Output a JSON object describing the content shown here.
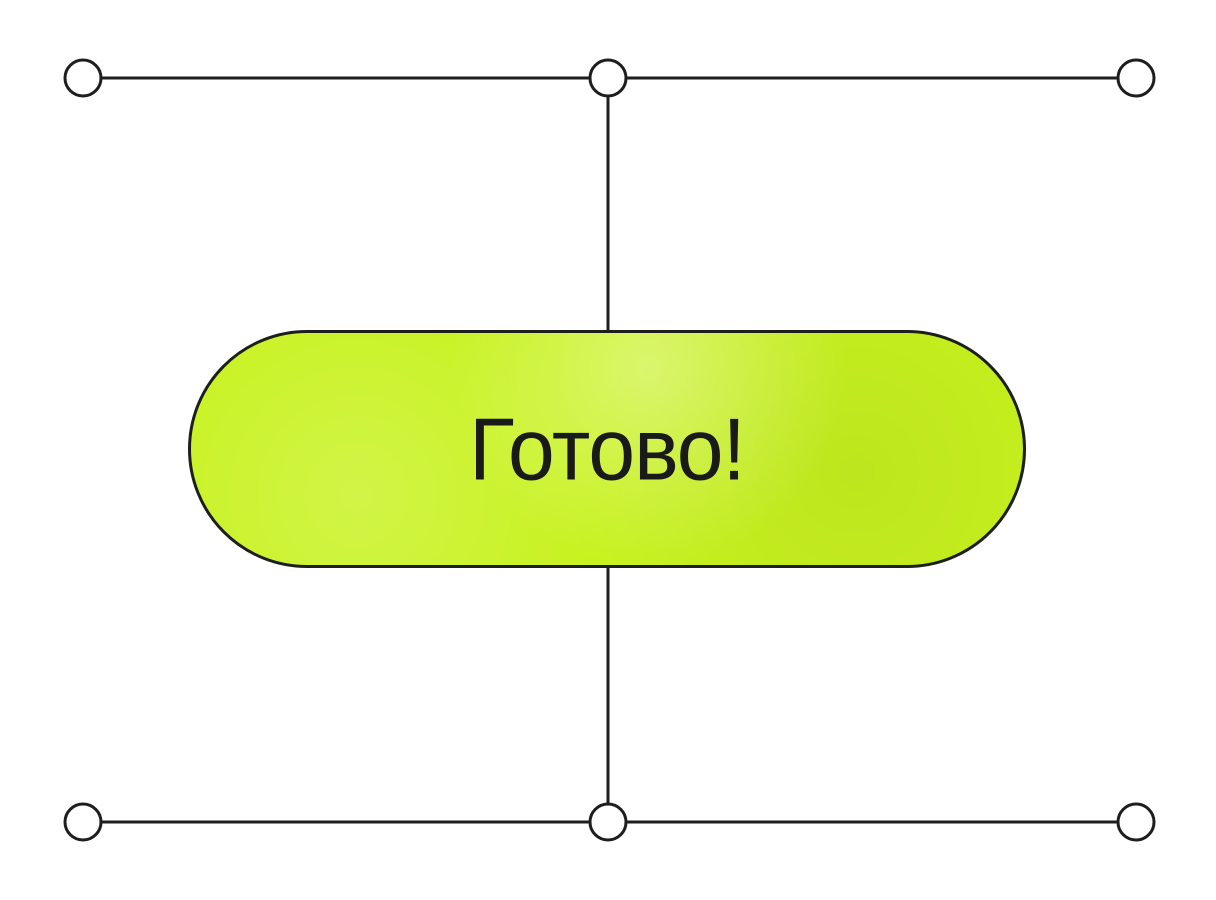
{
  "colors": {
    "line": "#1e1e1e",
    "node_fill": "#ffffff",
    "pill_fill": "#c8f21f",
    "text": "#1a1a1a"
  },
  "diagram": {
    "label": "Готово!",
    "nodes": [
      {
        "id": "top-left"
      },
      {
        "id": "top-center"
      },
      {
        "id": "top-right"
      },
      {
        "id": "bottom-left"
      },
      {
        "id": "bottom-center"
      },
      {
        "id": "bottom-right"
      }
    ],
    "edges": [
      {
        "from": "top-left",
        "to": "top-center"
      },
      {
        "from": "top-center",
        "to": "top-right"
      },
      {
        "from": "bottom-left",
        "to": "bottom-center"
      },
      {
        "from": "bottom-center",
        "to": "bottom-right"
      },
      {
        "from": "top-center",
        "to": "label"
      },
      {
        "from": "label",
        "to": "bottom-center"
      }
    ]
  }
}
